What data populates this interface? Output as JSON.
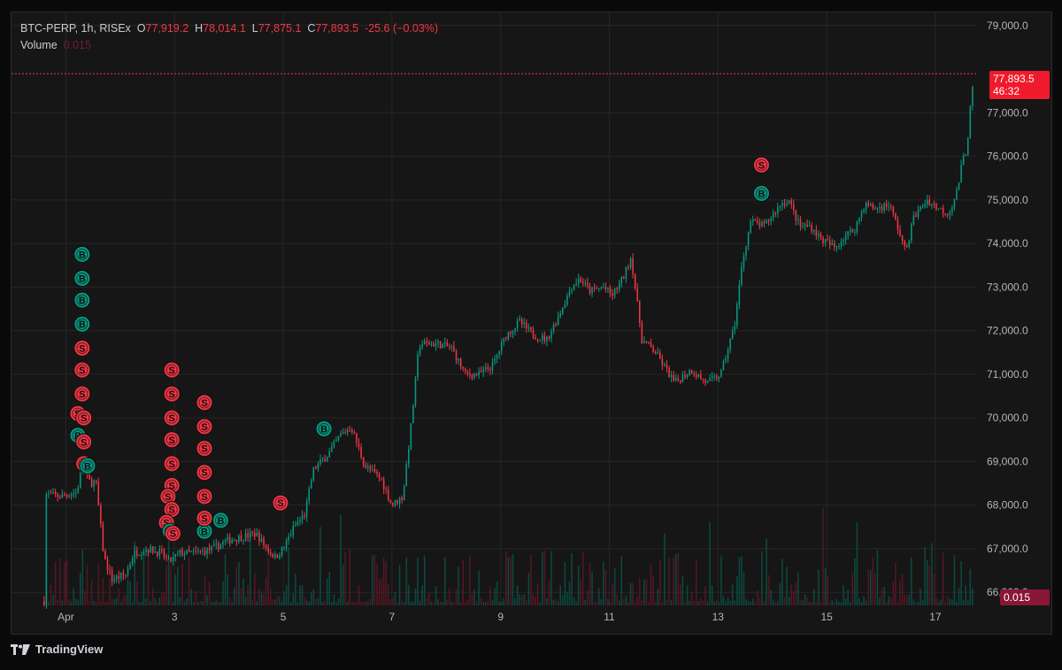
{
  "legend": {
    "symbol": "BTC-PERP, 1h, RISEx",
    "open_key": "O",
    "open": "77,919.2",
    "high_key": "H",
    "high": "78,014.1",
    "low_key": "L",
    "low": "77,875.1",
    "close_key": "C",
    "close": "77,893.5",
    "change": "-25.6 (−0.03%)",
    "volume_label": "Volume",
    "volume_value": "0.015"
  },
  "price_tag": {
    "price": "77,893.5",
    "countdown": "46:32"
  },
  "volume_tag": "0.015",
  "branding": {
    "name": "TradingView"
  },
  "colors": {
    "up": "#089981",
    "down": "#f23645",
    "background": "#161616",
    "grid": "#262626",
    "marker_buy": "#089981",
    "marker_sell": "#f23645"
  },
  "chart_data": {
    "type": "candlestick",
    "interval": "1h",
    "ylim": [
      65700,
      79300
    ],
    "y_ticks": [
      66000,
      67000,
      68000,
      69000,
      70000,
      71000,
      72000,
      73000,
      74000,
      75000,
      76000,
      77000,
      79000
    ],
    "y_tick_labels": [
      "66,000.0",
      "67,000.0",
      "68,000.0",
      "69,000.0",
      "70,000.0",
      "71,000.0",
      "72,000.0",
      "73,000.0",
      "74,000.0",
      "75,000.0",
      "76,000.0",
      "77,000.0",
      "79,000.0"
    ],
    "x_range_days": [
      0.7,
      18.45
    ],
    "x_ticks": [
      {
        "day": 1.7,
        "label": "Apr"
      },
      {
        "day": 3.7,
        "label": "3"
      },
      {
        "day": 5.7,
        "label": "5"
      },
      {
        "day": 7.7,
        "label": "7"
      },
      {
        "day": 9.7,
        "label": "9"
      },
      {
        "day": 11.7,
        "label": "11"
      },
      {
        "day": 13.7,
        "label": "13"
      },
      {
        "day": 15.7,
        "label": "15"
      },
      {
        "day": 17.7,
        "label": "17"
      }
    ],
    "last_price": 77893.5,
    "anchors": [
      [
        1.3,
        65800
      ],
      [
        1.33,
        68250
      ],
      [
        1.6,
        68200
      ],
      [
        1.9,
        68300
      ],
      [
        2.0,
        68850
      ],
      [
        2.15,
        68500
      ],
      [
        2.25,
        68550
      ],
      [
        2.4,
        66800
      ],
      [
        2.55,
        66300
      ],
      [
        2.8,
        66400
      ],
      [
        2.95,
        66900
      ],
      [
        3.2,
        67000
      ],
      [
        3.45,
        66900
      ],
      [
        3.6,
        66700
      ],
      [
        3.8,
        66900
      ],
      [
        4.1,
        66900
      ],
      [
        4.4,
        67000
      ],
      [
        4.7,
        67200
      ],
      [
        5.2,
        67350
      ],
      [
        5.4,
        67000
      ],
      [
        5.55,
        66800
      ],
      [
        5.7,
        67000
      ],
      [
        5.9,
        67500
      ],
      [
        6.1,
        67800
      ],
      [
        6.25,
        68800
      ],
      [
        6.55,
        69200
      ],
      [
        6.75,
        69600
      ],
      [
        6.95,
        69800
      ],
      [
        7.2,
        68900
      ],
      [
        7.5,
        68600
      ],
      [
        7.7,
        68000
      ],
      [
        7.9,
        68200
      ],
      [
        8.05,
        69800
      ],
      [
        8.2,
        71700
      ],
      [
        8.55,
        71700
      ],
      [
        8.8,
        71600
      ],
      [
        9.05,
        71000
      ],
      [
        9.3,
        71000
      ],
      [
        9.55,
        71200
      ],
      [
        9.8,
        71900
      ],
      [
        10.05,
        72200
      ],
      [
        10.3,
        71900
      ],
      [
        10.55,
        71800
      ],
      [
        10.75,
        72300
      ],
      [
        11.0,
        73000
      ],
      [
        11.15,
        73200
      ],
      [
        11.35,
        72900
      ],
      [
        11.6,
        73000
      ],
      [
        11.75,
        72800
      ],
      [
        11.95,
        73200
      ],
      [
        12.1,
        73700
      ],
      [
        12.3,
        71800
      ],
      [
        12.55,
        71500
      ],
      [
        12.7,
        71200
      ],
      [
        12.9,
        70800
      ],
      [
        13.2,
        71100
      ],
      [
        13.5,
        70800
      ],
      [
        13.75,
        71000
      ],
      [
        14.0,
        72100
      ],
      [
        14.15,
        73600
      ],
      [
        14.3,
        74500
      ],
      [
        14.55,
        74400
      ],
      [
        14.85,
        74900
      ],
      [
        15.0,
        75000
      ],
      [
        15.2,
        74400
      ],
      [
        15.4,
        74400
      ],
      [
        15.6,
        74100
      ],
      [
        15.85,
        73900
      ],
      [
        16.05,
        74200
      ],
      [
        16.2,
        74300
      ],
      [
        16.4,
        74900
      ],
      [
        16.6,
        74800
      ],
      [
        16.85,
        74900
      ],
      [
        17.0,
        74400
      ],
      [
        17.15,
        73800
      ],
      [
        17.3,
        74600
      ],
      [
        17.55,
        75000
      ],
      [
        17.75,
        74800
      ],
      [
        17.95,
        74700
      ],
      [
        18.1,
        75200
      ],
      [
        18.2,
        75900
      ],
      [
        18.28,
        76200
      ],
      [
        18.35,
        77200
      ],
      [
        18.42,
        77893.5
      ]
    ],
    "markers": [
      {
        "day": 2.0,
        "price": 73750,
        "side": "B",
        "label": "B"
      },
      {
        "day": 2.0,
        "price": 73200,
        "side": "B",
        "label": "B"
      },
      {
        "day": 2.0,
        "price": 72700,
        "side": "B",
        "label": "B"
      },
      {
        "day": 2.0,
        "price": 72150,
        "side": "B",
        "label": "B"
      },
      {
        "day": 2.0,
        "price": 71600,
        "side": "S",
        "label": "S"
      },
      {
        "day": 2.0,
        "price": 71100,
        "side": "S",
        "label": "S"
      },
      {
        "day": 2.0,
        "price": 70550,
        "side": "S",
        "label": "S"
      },
      {
        "day": 1.92,
        "price": 70100,
        "side": "S",
        "label": "S"
      },
      {
        "day": 2.03,
        "price": 70000,
        "side": "S",
        "label": "S"
      },
      {
        "day": 1.92,
        "price": 69600,
        "side": "B",
        "label": "B"
      },
      {
        "day": 2.03,
        "price": 69450,
        "side": "S",
        "label": "S"
      },
      {
        "day": 2.03,
        "price": 68950,
        "side": "S",
        "label": "S"
      },
      {
        "day": 2.1,
        "price": 68900,
        "side": "B",
        "label": "B"
      },
      {
        "day": 3.65,
        "price": 71100,
        "side": "S",
        "label": "S"
      },
      {
        "day": 3.65,
        "price": 70550,
        "side": "S",
        "label": "S"
      },
      {
        "day": 3.65,
        "price": 70000,
        "side": "S",
        "label": "S"
      },
      {
        "day": 3.65,
        "price": 69500,
        "side": "S",
        "label": "S"
      },
      {
        "day": 3.65,
        "price": 68950,
        "side": "S",
        "label": "S"
      },
      {
        "day": 3.65,
        "price": 68450,
        "side": "S",
        "label": "S"
      },
      {
        "day": 3.58,
        "price": 68200,
        "side": "S",
        "label": "S"
      },
      {
        "day": 3.65,
        "price": 67900,
        "side": "S",
        "label": "S"
      },
      {
        "day": 3.55,
        "price": 67600,
        "side": "S",
        "label": "S"
      },
      {
        "day": 3.62,
        "price": 67400,
        "side": "B",
        "label": "B"
      },
      {
        "day": 3.67,
        "price": 67350,
        "side": "S",
        "label": "S"
      },
      {
        "day": 4.25,
        "price": 67400,
        "side": "B",
        "label": "B"
      },
      {
        "day": 4.25,
        "price": 70350,
        "side": "S",
        "label": "S"
      },
      {
        "day": 4.25,
        "price": 69800,
        "side": "S",
        "label": "S"
      },
      {
        "day": 4.25,
        "price": 69300,
        "side": "S",
        "label": "S"
      },
      {
        "day": 4.25,
        "price": 68750,
        "side": "S",
        "label": "S"
      },
      {
        "day": 4.25,
        "price": 68200,
        "side": "S",
        "label": "S"
      },
      {
        "day": 4.25,
        "price": 67700,
        "side": "S",
        "label": "S"
      },
      {
        "day": 4.55,
        "price": 67650,
        "side": "B",
        "label": "B"
      },
      {
        "day": 5.65,
        "price": 68050,
        "side": "S",
        "label": "S"
      },
      {
        "day": 6.45,
        "price": 69750,
        "side": "B",
        "label": "B"
      },
      {
        "day": 14.5,
        "price": 75800,
        "side": "S",
        "label": "S"
      },
      {
        "day": 14.5,
        "price": 75150,
        "side": "B",
        "label": "B"
      }
    ]
  }
}
